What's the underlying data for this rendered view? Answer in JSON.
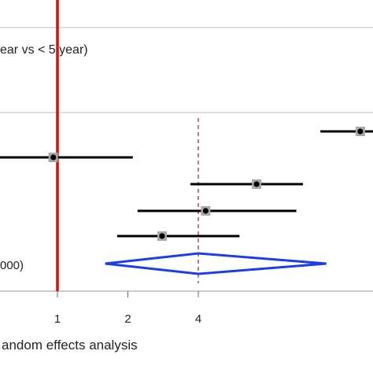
{
  "chart_data": {
    "type": "forest",
    "header_text": "ear vs < 5 year)",
    "pooled_label": "000)",
    "footer_label": "andom effects analysis",
    "x_scale": "log",
    "x_ticks": [
      {
        "value": 1,
        "label": "1"
      },
      {
        "value": 2,
        "label": "2"
      },
      {
        "value": 4,
        "label": "4"
      }
    ],
    "reference_line": 1,
    "pooled_estimate_line": 4,
    "studies": [
      {
        "estimate": 19.7,
        "ci": [
          13.3,
          29.4
        ]
      },
      {
        "estimate": 0.96,
        "ci": [
          0.44,
          2.1
        ]
      },
      {
        "estimate": 7.1,
        "ci": [
          3.7,
          11.2
        ]
      },
      {
        "estimate": 4.3,
        "ci": [
          2.2,
          10.5
        ]
      },
      {
        "estimate": 2.8,
        "ci": [
          1.8,
          6.0
        ]
      }
    ],
    "pooled": {
      "estimate": 4.0,
      "ci": [
        1.6,
        14.1
      ]
    },
    "colors": {
      "reference_line": "#cc1111",
      "pooled_diamond": "#1f3fd6",
      "pooled_line": "#7a2a3a",
      "study_lines": "#000000",
      "marker_box": "#a8a8a8",
      "separator": "#bbbbbb"
    }
  }
}
